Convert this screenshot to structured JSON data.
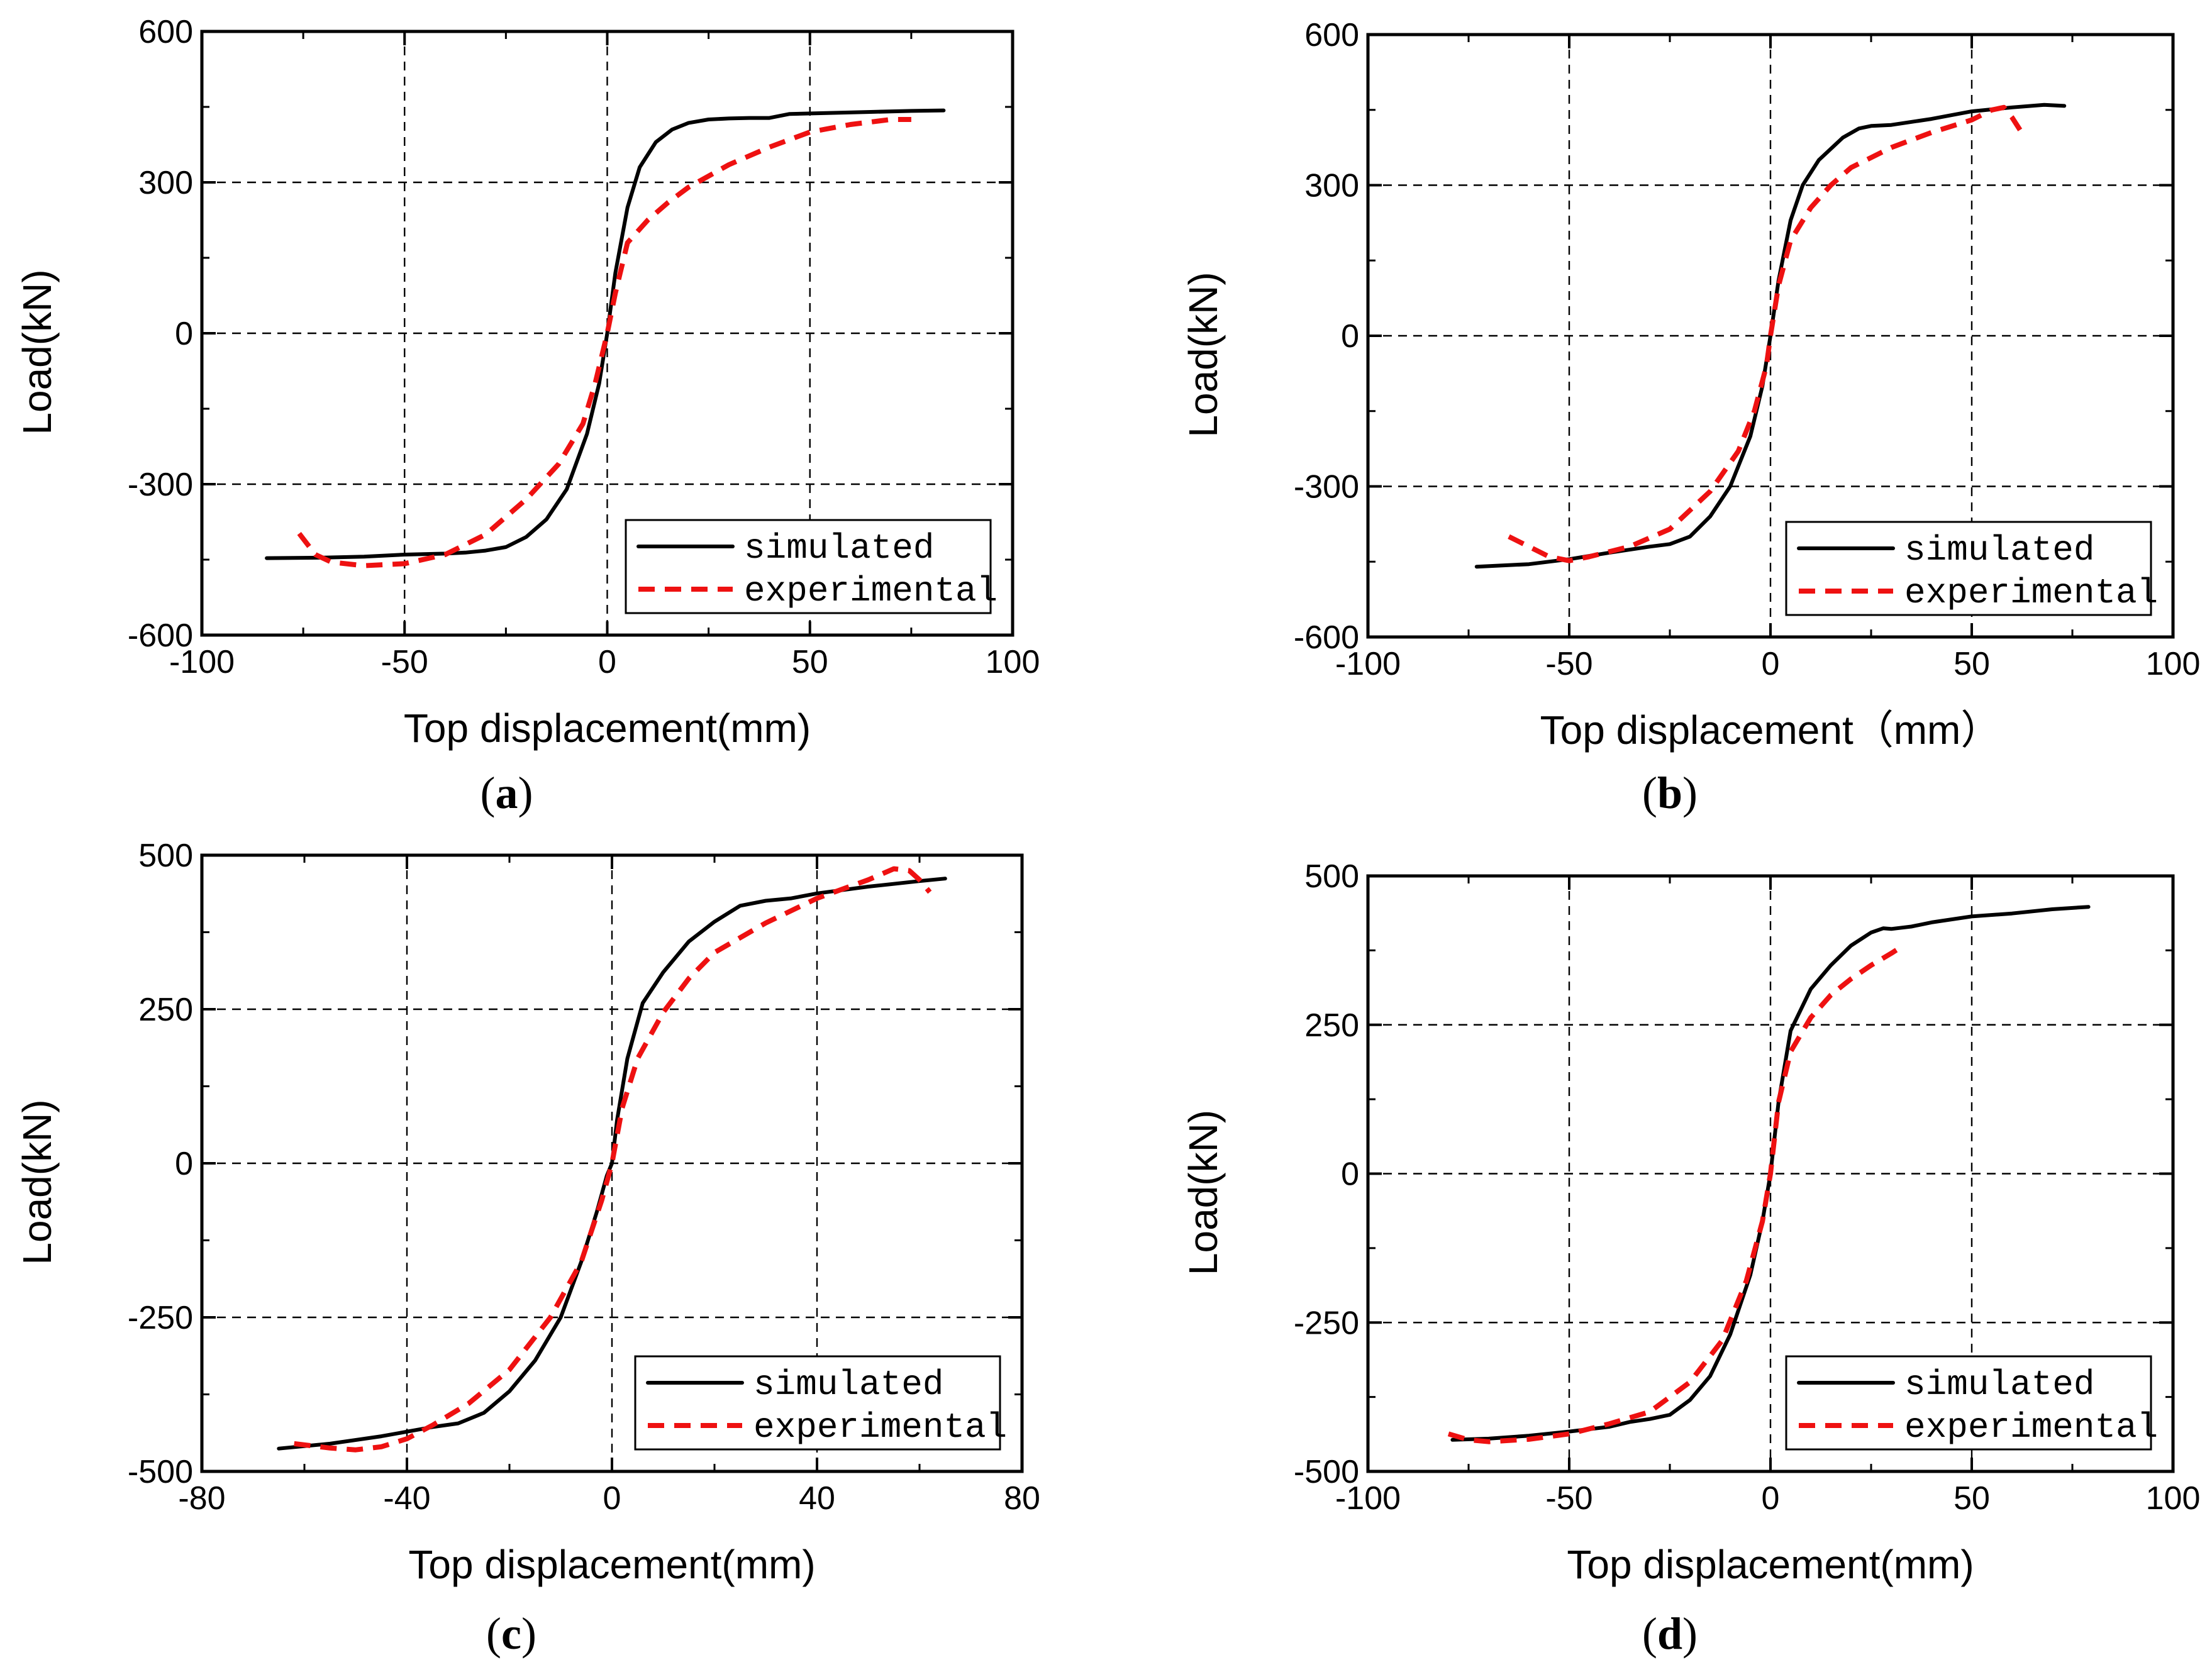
{
  "colors": {
    "simulated": "#000000",
    "experimental": "#ee1111"
  },
  "chart_data": [
    {
      "type": "line",
      "caption_letter": "a",
      "xlabel": "Top displacement(mm)",
      "ylabel": "Load(kN)",
      "xlim": [
        -100,
        100
      ],
      "ylim": [
        -600,
        600
      ],
      "xticks": [
        -100,
        -50,
        0,
        50,
        100
      ],
      "yticks": [
        -600,
        -300,
        0,
        300,
        600
      ],
      "grid": true,
      "legend_position": "bottom-right",
      "series": [
        {
          "name": "simulated",
          "x": [
            -84,
            -70,
            -60,
            -50,
            -40,
            -35,
            -30,
            -25,
            -20,
            -15,
            -10,
            -5,
            -2,
            0,
            2,
            5,
            8,
            12,
            16,
            20,
            25,
            30,
            35,
            40,
            45,
            55,
            65,
            75,
            83
          ],
          "y": [
            -447,
            -446,
            -444,
            -440,
            -438,
            -436,
            -432,
            -425,
            -405,
            -370,
            -310,
            -200,
            -100,
            0,
            120,
            250,
            330,
            380,
            405,
            418,
            425,
            427,
            428,
            428,
            436,
            438,
            440,
            442,
            443
          ]
        },
        {
          "name": "experimental",
          "x": [
            -76,
            -72,
            -68,
            -60,
            -50,
            -40,
            -30,
            -20,
            -12,
            -6,
            -3,
            0,
            2,
            5,
            10,
            15,
            20,
            30,
            40,
            50,
            60,
            70,
            75
          ],
          "y": [
            -398,
            -440,
            -455,
            -462,
            -458,
            -440,
            -400,
            -330,
            -260,
            -180,
            -100,
            0,
            80,
            180,
            225,
            260,
            290,
            335,
            370,
            400,
            415,
            425,
            425
          ]
        }
      ]
    },
    {
      "type": "line",
      "caption_letter": "b",
      "xlabel": "Top displacement（mm）",
      "ylabel": "Load(kN)",
      "xlim": [
        -100,
        100
      ],
      "ylim": [
        -600,
        600
      ],
      "xticks": [
        -100,
        -50,
        0,
        50,
        100
      ],
      "yticks": [
        -600,
        -300,
        0,
        300,
        600
      ],
      "grid": true,
      "legend_position": "bottom-right",
      "series": [
        {
          "name": "simulated",
          "x": [
            -73,
            -60,
            -50,
            -40,
            -30,
            -25,
            -20,
            -15,
            -10,
            -5,
            -2,
            0,
            2,
            5,
            8,
            12,
            18,
            22,
            25,
            30,
            40,
            50,
            60,
            68,
            73
          ],
          "y": [
            -460,
            -455,
            -445,
            -432,
            -420,
            -415,
            -400,
            -360,
            -300,
            -200,
            -100,
            0,
            110,
            230,
            300,
            350,
            395,
            413,
            418,
            420,
            432,
            447,
            455,
            460,
            458
          ]
        },
        {
          "name": "experimental",
          "x": [
            -65,
            -60,
            -55,
            -50,
            -45,
            -35,
            -25,
            -15,
            -8,
            -4,
            -1,
            0,
            2,
            5,
            10,
            15,
            20,
            30,
            40,
            50,
            55,
            58,
            60,
            62
          ],
          "y": [
            -400,
            -420,
            -440,
            -448,
            -440,
            -420,
            -385,
            -310,
            -230,
            -150,
            -60,
            0,
            100,
            190,
            255,
            300,
            335,
            375,
            405,
            430,
            450,
            455,
            435,
            410
          ]
        }
      ]
    },
    {
      "type": "line",
      "caption_letter": "c",
      "xlabel": "Top displacement(mm)",
      "ylabel": "Load(kN)",
      "xlim": [
        -80,
        80
      ],
      "ylim": [
        -500,
        500
      ],
      "xticks": [
        -80,
        -40,
        0,
        40,
        80
      ],
      "yticks": [
        -500,
        -250,
        0,
        250,
        500
      ],
      "grid": true,
      "legend_position": "bottom-right",
      "series": [
        {
          "name": "simulated",
          "x": [
            -65,
            -55,
            -45,
            -35,
            -30,
            -25,
            -20,
            -15,
            -10,
            -6,
            -3,
            -1,
            0,
            1,
            3,
            6,
            10,
            15,
            20,
            25,
            30,
            35,
            40,
            50,
            60,
            65
          ],
          "y": [
            -463,
            -455,
            -443,
            -428,
            -422,
            -405,
            -370,
            -320,
            -250,
            -160,
            -80,
            -20,
            0,
            70,
            170,
            260,
            310,
            360,
            392,
            418,
            426,
            430,
            438,
            449,
            458,
            462
          ]
        },
        {
          "name": "experimental",
          "x": [
            -62,
            -55,
            -50,
            -45,
            -40,
            -35,
            -28,
            -20,
            -12,
            -6,
            -2,
            0,
            2,
            5,
            10,
            15,
            20,
            30,
            40,
            50,
            55,
            58,
            60,
            62
          ],
          "y": [
            -455,
            -462,
            -465,
            -460,
            -447,
            -425,
            -390,
            -335,
            -250,
            -160,
            -60,
            0,
            90,
            170,
            245,
            300,
            342,
            390,
            430,
            460,
            478,
            475,
            460,
            440
          ]
        }
      ]
    },
    {
      "type": "line",
      "caption_letter": "d",
      "xlabel": "Top displacement(mm)",
      "ylabel": "Load(kN)",
      "xlim": [
        -100,
        100
      ],
      "ylim": [
        -500,
        500
      ],
      "xticks": [
        -100,
        -50,
        0,
        50,
        100
      ],
      "yticks": [
        -500,
        -250,
        0,
        250,
        500
      ],
      "grid": true,
      "legend_position": "bottom-right",
      "series": [
        {
          "name": "simulated",
          "x": [
            -79,
            -70,
            -60,
            -50,
            -40,
            -35,
            -30,
            -25,
            -20,
            -15,
            -10,
            -5,
            -2,
            0,
            2,
            5,
            10,
            15,
            20,
            25,
            28,
            30,
            35,
            40,
            50,
            60,
            70,
            79
          ],
          "y": [
            -447,
            -445,
            -440,
            -433,
            -425,
            -417,
            -412,
            -405,
            -380,
            -340,
            -270,
            -170,
            -80,
            0,
            120,
            240,
            310,
            350,
            383,
            405,
            412,
            411,
            415,
            422,
            432,
            437,
            444,
            448
          ]
        },
        {
          "name": "experimental",
          "x": [
            -80,
            -75,
            -70,
            -60,
            -50,
            -40,
            -30,
            -20,
            -12,
            -6,
            -2,
            0,
            2,
            5,
            10,
            15,
            20,
            25,
            30,
            33
          ],
          "y": [
            -437,
            -447,
            -450,
            -446,
            -437,
            -420,
            -400,
            -350,
            -280,
            -180,
            -80,
            0,
            120,
            205,
            262,
            300,
            327,
            350,
            370,
            383
          ]
        }
      ]
    }
  ]
}
